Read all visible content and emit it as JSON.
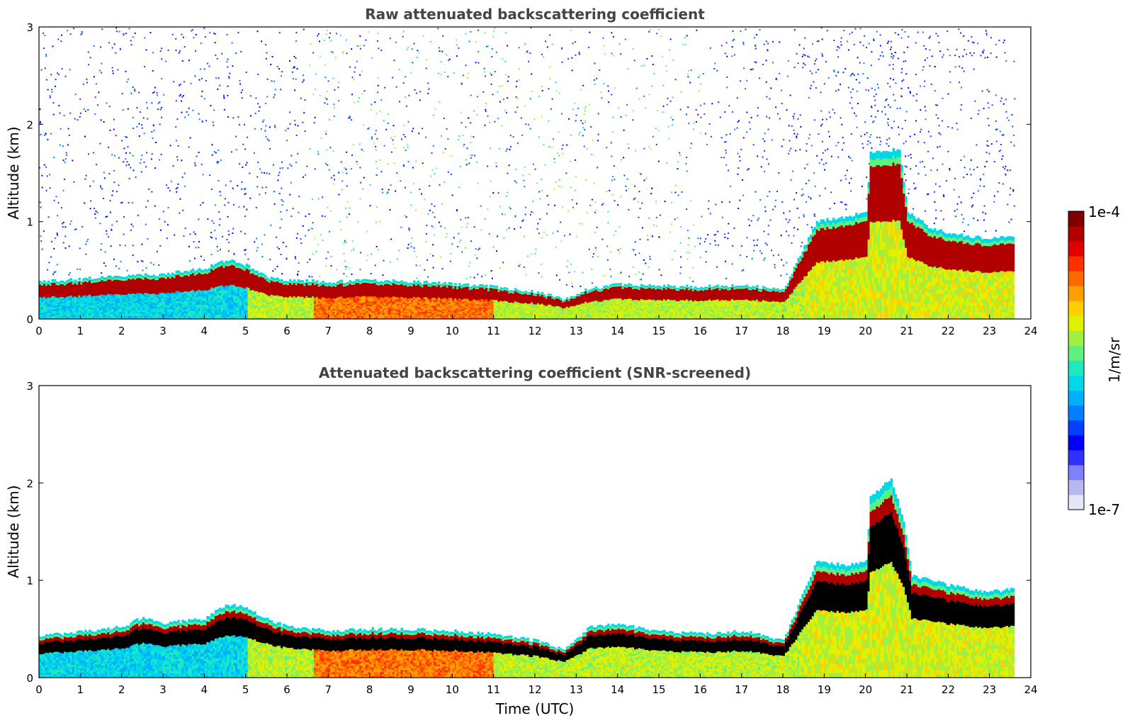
{
  "chart_data": [
    {
      "type": "heatmap",
      "title": "Raw attenuated backscattering coefficient",
      "xlabel": "",
      "ylabel": "Altitude (km)",
      "xlim": [
        0,
        24
      ],
      "ylim": [
        0,
        3
      ],
      "xticks": [
        "0",
        "1",
        "2",
        "3",
        "4",
        "5",
        "6",
        "7",
        "8",
        "9",
        "10",
        "11",
        "12",
        "13",
        "14",
        "15",
        "16",
        "17",
        "18",
        "19",
        "20",
        "21",
        "22",
        "23",
        "24"
      ],
      "yticks": [
        "0",
        "1",
        "2",
        "3"
      ],
      "noise": true,
      "layer_top_km": [
        [
          0,
          0.38
        ],
        [
          1,
          0.41
        ],
        [
          2,
          0.45
        ],
        [
          3,
          0.46
        ],
        [
          4,
          0.52
        ],
        [
          4.6,
          0.62
        ],
        [
          5,
          0.55
        ],
        [
          5.5,
          0.43
        ],
        [
          6,
          0.4
        ],
        [
          7,
          0.38
        ],
        [
          8,
          0.4
        ],
        [
          9,
          0.38
        ],
        [
          10,
          0.36
        ],
        [
          11,
          0.33
        ],
        [
          12,
          0.28
        ],
        [
          12.7,
          0.2
        ],
        [
          13.2,
          0.3
        ],
        [
          14,
          0.36
        ],
        [
          15,
          0.34
        ],
        [
          16,
          0.33
        ],
        [
          17,
          0.35
        ],
        [
          18,
          0.3
        ],
        [
          18.4,
          0.65
        ],
        [
          18.8,
          1.0
        ],
        [
          19.5,
          1.05
        ],
        [
          20,
          1.1
        ],
        [
          20.1,
          1.7
        ],
        [
          20.8,
          1.75
        ],
        [
          21,
          1.1
        ],
        [
          21.5,
          0.95
        ],
        [
          22,
          0.88
        ],
        [
          23,
          0.82
        ],
        [
          23.6,
          0.85
        ]
      ]
    },
    {
      "type": "heatmap",
      "title": "Attenuated backscattering coefficient (SNR-screened)",
      "xlabel": "Time (UTC)",
      "ylabel": "Altitude (km)",
      "xlim": [
        0,
        24
      ],
      "ylim": [
        0,
        3
      ],
      "xticks": [
        "0",
        "1",
        "2",
        "3",
        "4",
        "5",
        "6",
        "7",
        "8",
        "9",
        "10",
        "11",
        "12",
        "13",
        "14",
        "15",
        "16",
        "17",
        "18",
        "19",
        "20",
        "21",
        "22",
        "23",
        "24"
      ],
      "yticks": [
        "0",
        "1",
        "2",
        "3"
      ],
      "noise": false,
      "layer_top_km": [
        [
          0,
          0.43
        ],
        [
          1,
          0.47
        ],
        [
          2,
          0.52
        ],
        [
          2.5,
          0.62
        ],
        [
          3,
          0.56
        ],
        [
          4,
          0.6
        ],
        [
          4.5,
          0.75
        ],
        [
          5,
          0.72
        ],
        [
          5.5,
          0.6
        ],
        [
          6,
          0.52
        ],
        [
          7,
          0.48
        ],
        [
          8,
          0.5
        ],
        [
          9,
          0.5
        ],
        [
          10,
          0.48
        ],
        [
          11,
          0.45
        ],
        [
          12,
          0.38
        ],
        [
          12.7,
          0.28
        ],
        [
          13.3,
          0.52
        ],
        [
          14,
          0.55
        ],
        [
          15,
          0.48
        ],
        [
          16,
          0.45
        ],
        [
          17,
          0.48
        ],
        [
          18,
          0.38
        ],
        [
          18.4,
          0.8
        ],
        [
          18.8,
          1.2
        ],
        [
          19.5,
          1.15
        ],
        [
          20,
          1.2
        ],
        [
          20.1,
          1.85
        ],
        [
          20.6,
          2.05
        ],
        [
          20.9,
          1.6
        ],
        [
          21.1,
          1.05
        ],
        [
          22,
          0.95
        ],
        [
          23,
          0.88
        ],
        [
          23.6,
          0.92
        ]
      ]
    }
  ],
  "colorbar": {
    "max_label": "1e-4",
    "min_label": "1e-7",
    "unit_label": "1/m/sr",
    "colors": [
      "#e6e6fa",
      "#b8b8f0",
      "#8080ff",
      "#3030ff",
      "#0000ff",
      "#0040ff",
      "#0080ff",
      "#00b0ff",
      "#00d8e8",
      "#20e8c0",
      "#60f080",
      "#a0f040",
      "#e0f000",
      "#ffd000",
      "#ffa000",
      "#ff6a00",
      "#ff3000",
      "#e00000",
      "#b00000",
      "#800000"
    ]
  }
}
